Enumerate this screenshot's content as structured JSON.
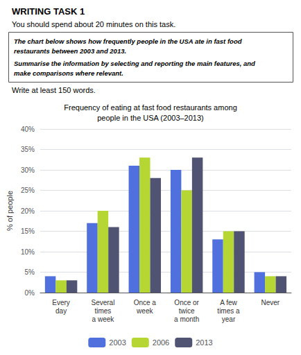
{
  "chart_data": {
    "type": "bar",
    "title": "Frequency of eating at fast food restaurants among\npeople in the USA (2003–2013)",
    "annotations": [
      "WRITING TASK 1",
      "You should spend about 20 minutes on this task.",
      "The chart below shows how frequently people in the USA ate in fast food",
      "restaurants between 2003 and 2013.",
      "Summarise the information by selecting and reporting the main features, and",
      "make comparisons where relevant.",
      "Write at least 150 words."
    ],
    "categories": [
      "Every\nday",
      "Several\ntimes\na week",
      "Once a\nweek",
      "Once or\ntwice\na month",
      "A few\ntimes a\nyear",
      "Never"
    ],
    "series": [
      {
        "name": "2003",
        "values": [
          4,
          17,
          31,
          30,
          13,
          5
        ]
      },
      {
        "name": "2006",
        "values": [
          3,
          20,
          33,
          25,
          15,
          4
        ]
      },
      {
        "name": "2013",
        "values": [
          3,
          16,
          28,
          33,
          15,
          4
        ]
      }
    ],
    "ylabel": "% of people",
    "ylim": [
      0,
      40
    ],
    "yticks": [
      {
        "value": 0,
        "label": "0%"
      },
      {
        "value": 5,
        "label": "5%"
      },
      {
        "value": 10,
        "label": "10%"
      },
      {
        "value": 15,
        "label": "15%"
      },
      {
        "value": 20,
        "label": "20%"
      },
      {
        "value": 25,
        "label": "25%"
      },
      {
        "value": 30,
        "label": "30%"
      },
      {
        "value": 35,
        "label": "35%"
      },
      {
        "value": 40,
        "label": "40%"
      }
    ],
    "grid": true,
    "legend": "bottom"
  }
}
